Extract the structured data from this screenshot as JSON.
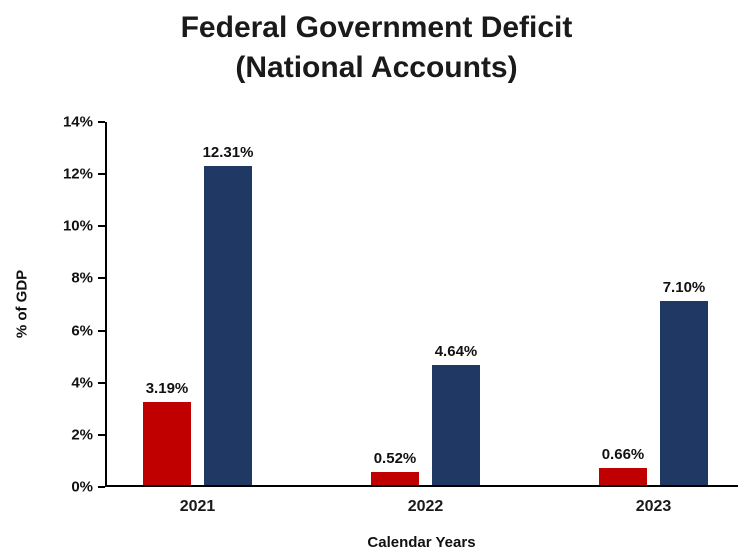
{
  "title": {
    "line1": "Federal Government Deficit",
    "line2": "(National Accounts)"
  },
  "chart_data": {
    "type": "bar",
    "title": "Federal Government Deficit (National Accounts)",
    "categories": [
      "2021",
      "2022",
      "2023"
    ],
    "series": [
      {
        "name": "red-bars",
        "color": "#c00000",
        "values": [
          3.19,
          0.52,
          0.66
        ],
        "labels": [
          "3.19%",
          "0.52%",
          "0.66%"
        ]
      },
      {
        "name": "navy-bars",
        "color": "#1f3864",
        "values": [
          12.31,
          4.64,
          7.1
        ],
        "labels": [
          "12.31%",
          "4.64%",
          "7.10%"
        ]
      }
    ],
    "xlabel": "Calendar Years",
    "ylabel": "%  of GDP",
    "ylim": [
      0,
      14
    ],
    "ytick_step": 2,
    "ytick_suffix": "%",
    "grid": false,
    "legend": "none"
  }
}
